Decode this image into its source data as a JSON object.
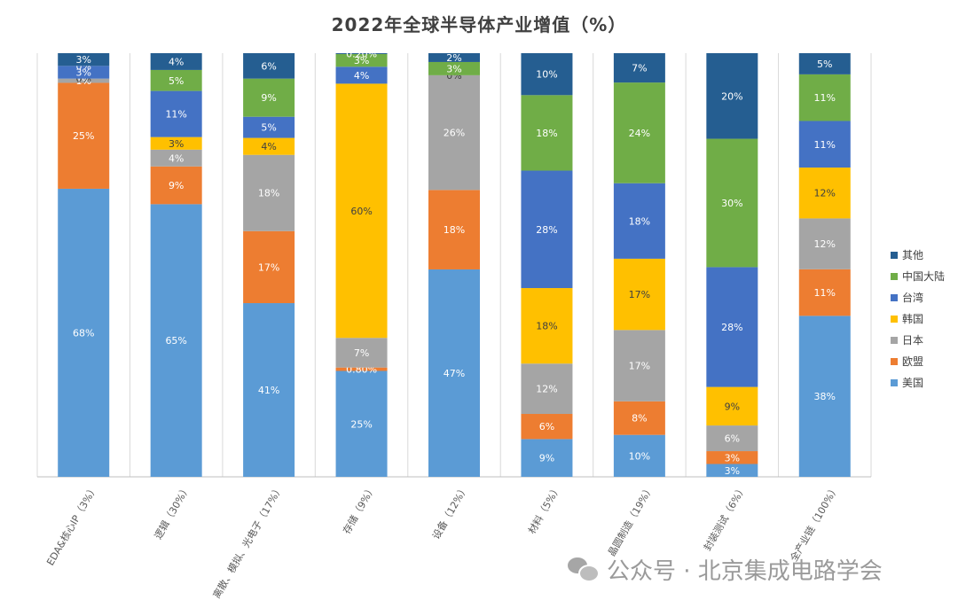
{
  "chart_data": {
    "type": "bar",
    "stacked": "percent",
    "title": "2022年全球半导体产业增值（%）",
    "categories": [
      "EDA&核心IP（3%）",
      "逻辑（30%）",
      "离散、模拟、光电子（17%）",
      "存储（9%）",
      "设备（12%）",
      "材料（5%）",
      "晶圆制造（19%）",
      "封装测试（6%）",
      "全产业链（100%）"
    ],
    "ylim": [
      0,
      100
    ],
    "grid": true,
    "legend_position": "right",
    "series": [
      {
        "name": "美国",
        "color": "#5b9bd5",
        "values": [
          68,
          65,
          41,
          25,
          47,
          9,
          10,
          3,
          38
        ],
        "labels": [
          "68%",
          "65%",
          "41%",
          "25%",
          "47%",
          "9%",
          "10%",
          "3%",
          "38%"
        ]
      },
      {
        "name": "欧盟",
        "color": "#ed7d31",
        "values": [
          25,
          9,
          17,
          0.8,
          18,
          6,
          8,
          3,
          11
        ],
        "labels": [
          "25%",
          "9%",
          "17%",
          "0.80%",
          "18%",
          "6%",
          "8%",
          "3%",
          "11%"
        ]
      },
      {
        "name": "日本",
        "color": "#a5a5a5",
        "values": [
          1,
          4,
          18,
          7,
          26,
          12,
          17,
          6,
          12
        ],
        "labels": [
          "1%",
          "4%",
          "18%",
          "7%",
          "26%",
          "12%",
          "17%",
          "6%",
          "12%"
        ]
      },
      {
        "name": "韩国",
        "color": "#ffc000",
        "values": [
          0,
          3,
          4,
          60,
          0,
          18,
          17,
          9,
          12
        ],
        "labels": [
          "0%",
          "3%",
          "4%",
          "60%",
          "0%",
          "18%",
          "17%",
          "9%",
          "12%"
        ]
      },
      {
        "name": "台湾",
        "color": "#4472c4",
        "values": [
          3,
          11,
          5,
          4,
          0,
          28,
          18,
          28,
          11
        ],
        "labels": [
          "3%",
          "11%",
          "5%",
          "4%",
          "",
          "28%",
          "18%",
          "28%",
          "11%"
        ]
      },
      {
        "name": "中国大陆",
        "color": "#70ad47",
        "values": [
          0,
          5,
          9,
          3,
          3,
          18,
          24,
          30,
          11
        ],
        "labels": [
          "0%",
          "5%",
          "9%",
          "3%",
          "3%",
          "18%",
          "24%",
          "30%",
          "11%"
        ]
      },
      {
        "name": "其他",
        "color": "#255e91",
        "values": [
          3,
          4,
          6,
          0.2,
          2,
          10,
          7,
          20,
          5
        ],
        "labels": [
          "3%",
          "4%",
          "6%",
          "0.20%",
          "2%",
          "10%",
          "7%",
          "20%",
          "5%"
        ]
      }
    ],
    "legend_order": [
      "其他",
      "中国大陆",
      "台湾",
      "韩国",
      "日本",
      "欧盟",
      "美国"
    ]
  },
  "watermark": {
    "text": "公众号 · 北京集成电路学会",
    "icon": "wechat-icon"
  }
}
